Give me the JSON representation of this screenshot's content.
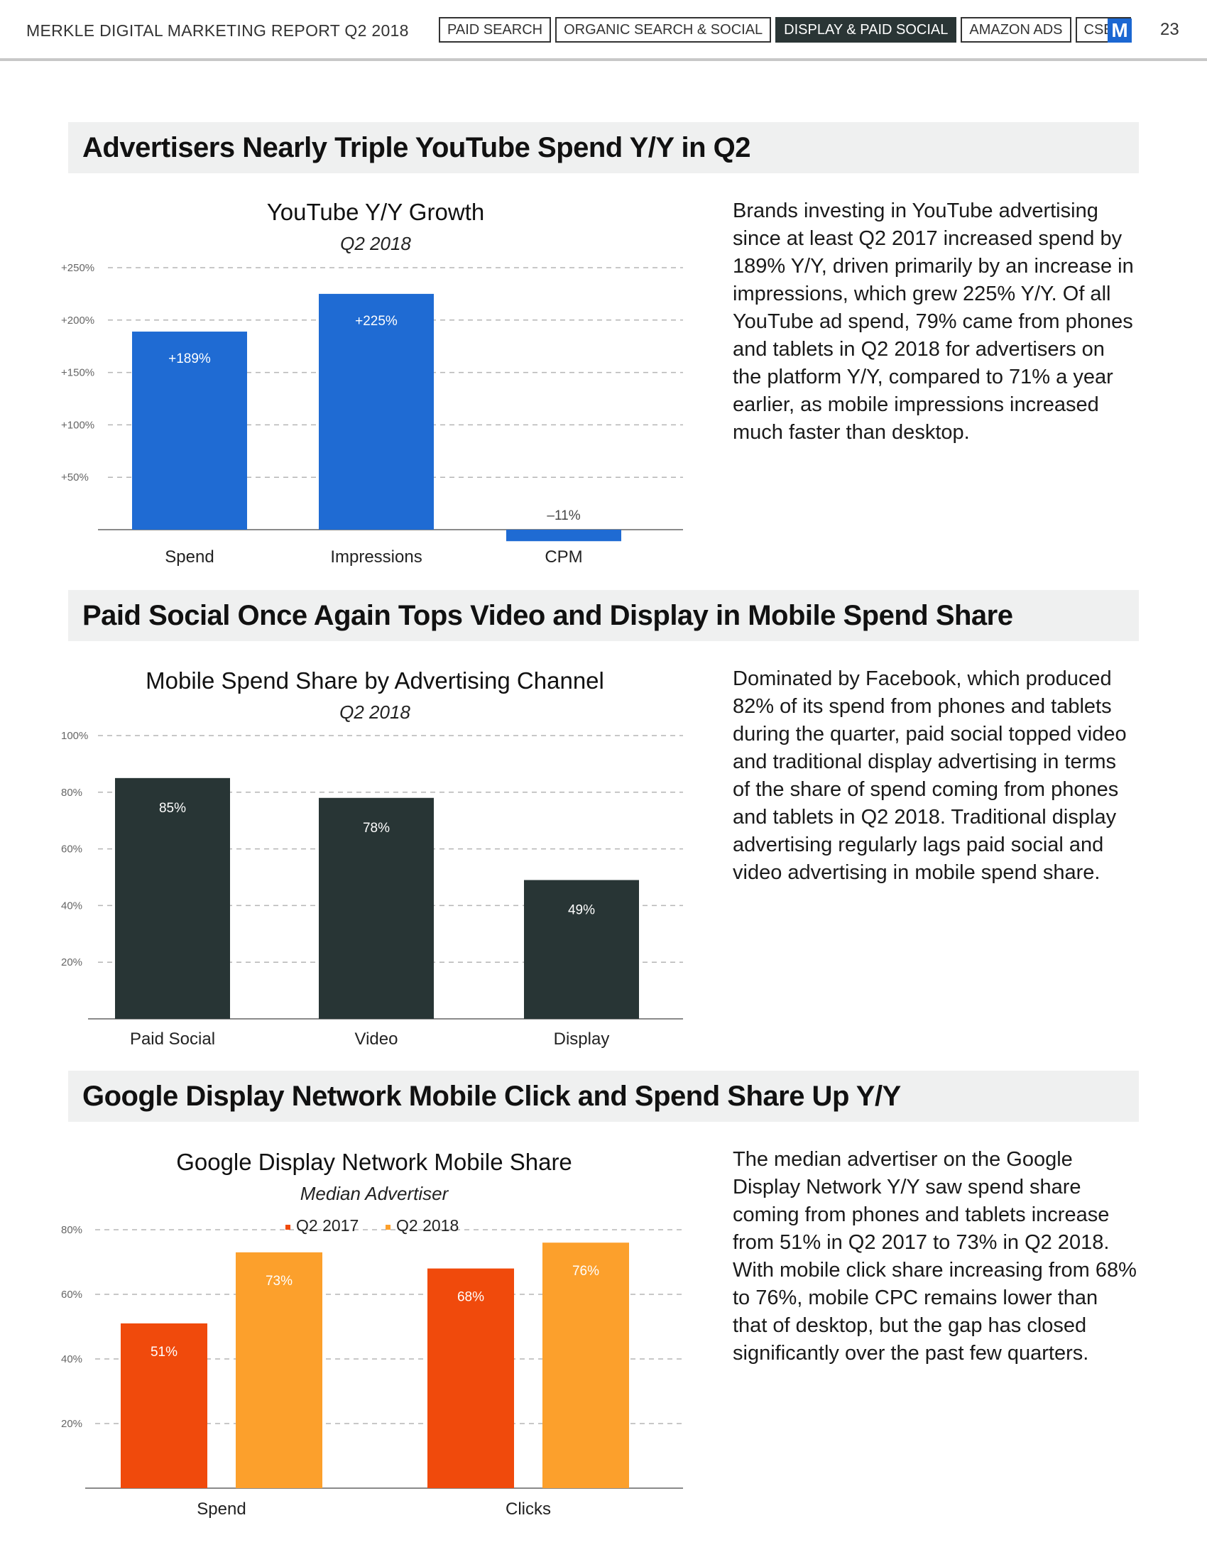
{
  "header": {
    "title": "MERKLE DIGITAL MARKETING REPORT Q2 2018",
    "tabs": [
      {
        "label": "PAID SEARCH",
        "active": false
      },
      {
        "label": "ORGANIC SEARCH & SOCIAL",
        "active": false
      },
      {
        "label": "DISPLAY & PAID SOCIAL",
        "active": true
      },
      {
        "label": "AMAZON ADS",
        "active": false
      },
      {
        "label": "CSES",
        "active": false
      }
    ],
    "logo": "M",
    "page_number": "23"
  },
  "sections": [
    {
      "title": "Advertisers Nearly Triple YouTube Spend Y/Y in Q2",
      "text": "Brands investing in YouTube advertising since at least Q2 2017 increased spend by 189% Y/Y, driven primarily by an increase in impressions, which grew 225% Y/Y. Of all YouTube ad spend, 79% came from phones and tablets in Q2 2018 for advertisers on the platform Y/Y, compared to 71% a year earlier, as mobile impressions increased much faster than desktop."
    },
    {
      "title": "Paid Social Once Again Tops Video and Display in Mobile Spend Share",
      "text": "Dominated by Facebook, which produced 82% of its spend from phones and tablets during the quarter, paid social topped video and traditional display advertising in terms of the share of spend coming from phones and tablets in Q2 2018. Traditional display advertising regularly lags paid social and video advertising in mobile spend share."
    },
    {
      "title": "Google Display Network Mobile Click and Spend Share Up Y/Y",
      "text": "The median advertiser on the Google Display Network Y/Y saw spend share coming from phones and tablets increase from 51% in Q2 2017 to 73% in Q2 2018. With mobile click share increasing from 68% to 76%, mobile CPC remains lower than that of desktop, but the gap has closed significantly over the past few quarters."
    }
  ],
  "chart_data": [
    {
      "type": "bar",
      "title": "YouTube Y/Y Growth",
      "subtitle": "Q2 2018",
      "categories": [
        "Spend",
        "Impressions",
        "CPM"
      ],
      "values": [
        189,
        225,
        -11
      ],
      "data_labels": [
        "+189%",
        "+225%",
        "–11%"
      ],
      "ylim": [
        0,
        250
      ],
      "yticks": [
        50,
        100,
        150,
        200,
        250
      ],
      "ytick_labels": [
        "+50%",
        "+100%",
        "+150%",
        "+200%",
        "+250%"
      ],
      "grid": true,
      "color": "#1f6bd3",
      "label_color": "#ffffff",
      "xlabel": "",
      "ylabel": ""
    },
    {
      "type": "bar",
      "title": "Mobile Spend Share by Advertising Channel",
      "subtitle": "Q2 2018",
      "categories": [
        "Paid Social",
        "Video",
        "Display"
      ],
      "values": [
        85,
        78,
        49
      ],
      "data_labels": [
        "85%",
        "78%",
        "49%"
      ],
      "ylim": [
        0,
        100
      ],
      "yticks": [
        20,
        40,
        60,
        80,
        100
      ],
      "ytick_labels": [
        "20%",
        "40%",
        "60%",
        "80%",
        "100%"
      ],
      "grid": true,
      "color": "#283535",
      "label_color": "#ffffff",
      "xlabel": "",
      "ylabel": ""
    },
    {
      "type": "bar",
      "title": "Google Display Network Mobile Share",
      "subtitle": "Median Advertiser",
      "categories": [
        "Spend",
        "Clicks"
      ],
      "series": [
        {
          "name": "Q2 2017",
          "values": [
            51,
            68
          ],
          "data_labels": [
            "51%",
            "68%"
          ],
          "color": "#f04a0c"
        },
        {
          "name": "Q2 2018",
          "values": [
            73,
            76
          ],
          "data_labels": [
            "73%",
            "76%"
          ],
          "color": "#fca02c"
        }
      ],
      "ylim": [
        0,
        80
      ],
      "yticks": [
        20,
        40,
        60,
        80
      ],
      "ytick_labels": [
        "20%",
        "40%",
        "60%",
        "80%"
      ],
      "grid": true,
      "legend": "top-center",
      "label_color": "#ffffff",
      "xlabel": "",
      "ylabel": ""
    }
  ]
}
